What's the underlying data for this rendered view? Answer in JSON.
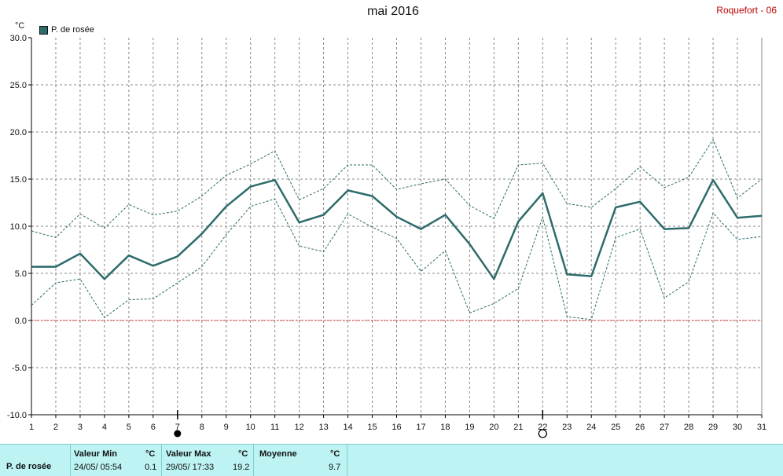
{
  "header": {
    "title": "mai 2016",
    "station": "Roquefort - 06",
    "unit": "°C"
  },
  "chart_data": {
    "type": "line",
    "title": "mai 2016",
    "ylabel": "°C",
    "ylim": [
      -10,
      30
    ],
    "xlim": [
      1,
      31
    ],
    "yticks": [
      "30.0",
      "25.0",
      "20.0",
      "15.0",
      "10.0",
      "5.0",
      "0.0",
      "-5.0",
      "-10.0"
    ],
    "xticks": [
      "1",
      "2",
      "3",
      "4",
      "5",
      "6",
      "7",
      "8",
      "9",
      "10",
      "11",
      "12",
      "13",
      "14",
      "15",
      "16",
      "17",
      "18",
      "19",
      "20",
      "21",
      "22",
      "23",
      "24",
      "25",
      "26",
      "27",
      "28",
      "29",
      "30",
      "31"
    ],
    "legend": {
      "label": "P. de rosée",
      "placement": "top-left"
    },
    "grid": true,
    "x": [
      1,
      2,
      3,
      4,
      5,
      6,
      7,
      8,
      9,
      10,
      11,
      12,
      13,
      14,
      15,
      16,
      17,
      18,
      19,
      20,
      21,
      22,
      23,
      24,
      25,
      26,
      27,
      28,
      29,
      30,
      31
    ],
    "series": [
      {
        "name": "P. de rosée",
        "role": "mean",
        "color": "#2e6b6b",
        "values": [
          5.7,
          5.7,
          7.1,
          4.4,
          6.9,
          5.8,
          6.8,
          9.2,
          12.1,
          14.2,
          14.9,
          10.4,
          11.2,
          13.8,
          13.2,
          11.0,
          9.7,
          11.2,
          8.1,
          4.4,
          10.5,
          13.5,
          4.9,
          4.7,
          12.0,
          12.6,
          9.7,
          9.8,
          14.9,
          10.9,
          11.1
        ]
      },
      {
        "role": "max",
        "color": "#2e6b6b",
        "values": [
          9.5,
          8.8,
          11.3,
          9.8,
          12.3,
          11.2,
          11.6,
          13.2,
          15.4,
          16.6,
          18.0,
          12.8,
          14.0,
          16.5,
          16.5,
          13.9,
          14.5,
          15.0,
          12.2,
          10.8,
          16.5,
          16.7,
          12.4,
          12.0,
          14.0,
          16.3,
          14.1,
          15.2,
          19.2,
          13.0,
          15.0
        ]
      },
      {
        "role": "min",
        "color": "#2e6b6b",
        "values": [
          1.6,
          4.0,
          4.4,
          0.3,
          2.2,
          2.3,
          4.0,
          5.7,
          9.1,
          12.1,
          12.9,
          7.9,
          7.3,
          11.3,
          9.9,
          8.7,
          5.2,
          7.4,
          0.8,
          1.8,
          3.4,
          11.0,
          0.4,
          0.1,
          8.8,
          9.7,
          2.4,
          4.1,
          11.4,
          8.6,
          8.9
        ]
      }
    ],
    "reference_line": {
      "y": 0,
      "color": "#dd2222"
    },
    "markers": [
      {
        "x": 7,
        "symbol": "full-moon-disc"
      },
      {
        "x": 22,
        "symbol": "new-moon-circle"
      }
    ]
  },
  "stats": {
    "row_label": "P. de rosée",
    "min": {
      "header": "Valeur Min",
      "unit": "°C",
      "date": "24/05/  05:54",
      "value": "0.1"
    },
    "max": {
      "header": "Valeur Max",
      "unit": "°C",
      "date": "29/05/  17:33",
      "value": "19.2"
    },
    "mean": {
      "header": "Moyenne",
      "unit": "°C",
      "value": "9.7"
    }
  },
  "colors": {
    "line": "#2e6b6b",
    "grid": "#888888",
    "zero_line": "#dd2222",
    "footer_bg": "#bdf3f3",
    "station": "#c00000"
  }
}
